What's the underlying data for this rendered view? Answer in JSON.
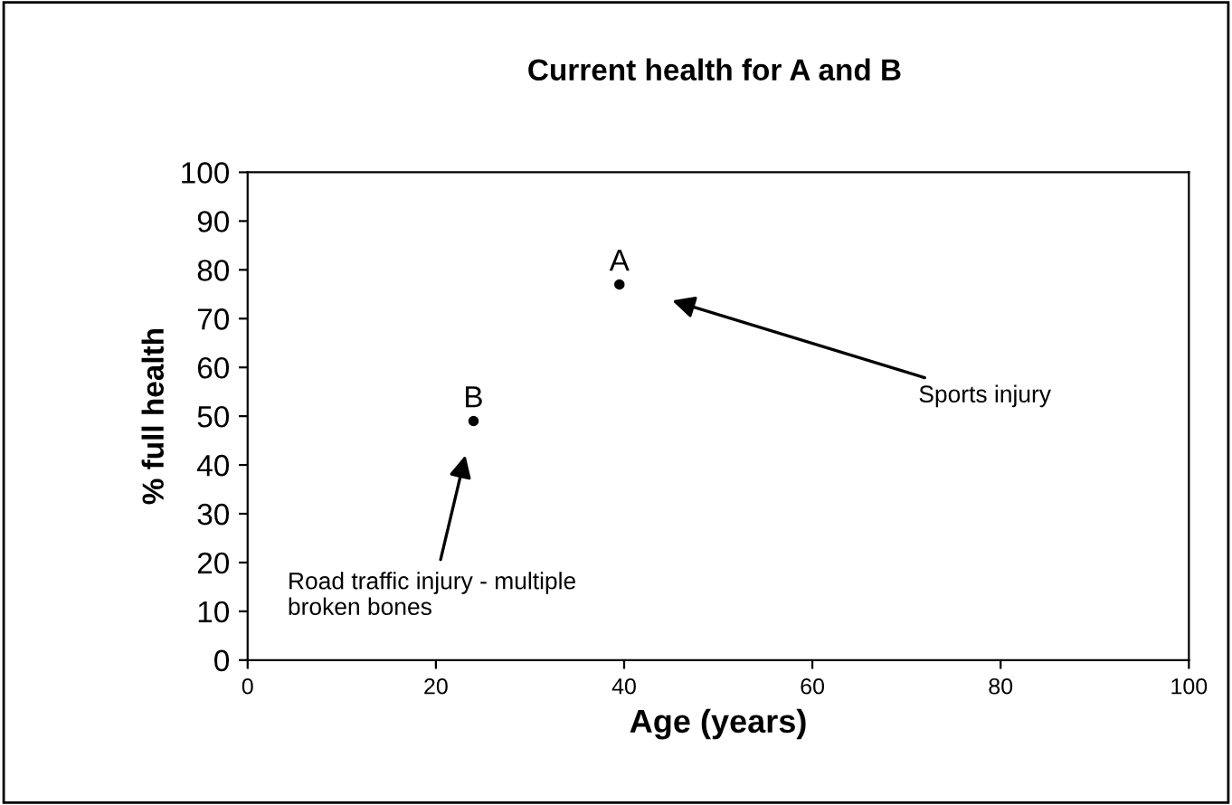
{
  "chart_data": {
    "type": "scatter",
    "title": "Current health for A and B",
    "xlabel": "Age (years)",
    "ylabel": "% full health",
    "series": [
      {
        "x": [
          39.5,
          24
        ],
        "values": [
          77,
          49
        ],
        "value_labels": [
          "A",
          "B"
        ],
        "color": "#000000"
      }
    ],
    "marker": "circle",
    "grid": false,
    "legend": false,
    "xlim": [
      0,
      100
    ],
    "xticks": [
      0,
      20,
      40,
      60,
      80,
      100
    ],
    "ylim": [
      0,
      100
    ],
    "yticks": [
      0,
      10,
      20,
      30,
      40,
      50,
      60,
      70,
      80,
      90,
      100
    ],
    "annotations": [
      "Sports injury",
      "Road traffic injury - multiple\nbroken bones"
    ]
  }
}
